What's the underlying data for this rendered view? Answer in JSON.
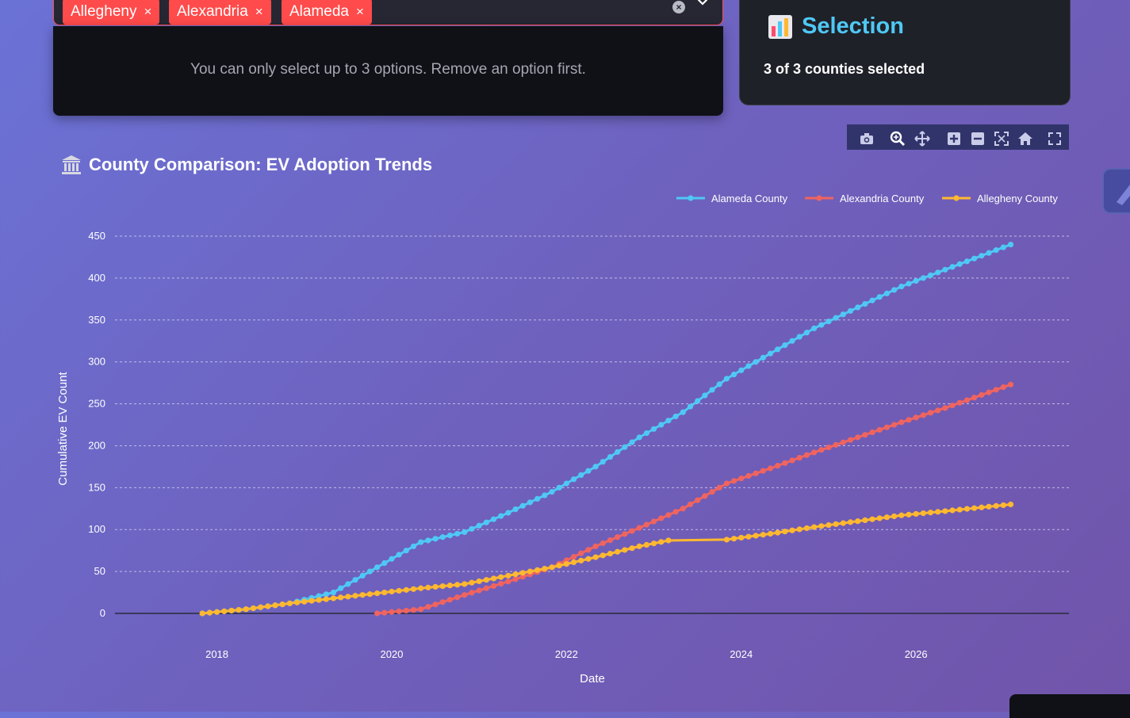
{
  "multiselect": {
    "chips": [
      {
        "label": "Allegheny"
      },
      {
        "label": "Alexandria"
      },
      {
        "label": "Alameda"
      }
    ],
    "remove_glyph": "×",
    "clear_glyph": "×",
    "chevron_glyph": "⌄",
    "limit_message": "You can only select up to 3 options. Remove an option first.",
    "accent_color": "#ff4b4b"
  },
  "selection_card": {
    "icon": "bar-chart-icon",
    "title": "Selection",
    "status": "3 of 3 counties selected"
  },
  "modebar": {
    "buttons": [
      "camera-icon",
      "zoom-icon",
      "pan-icon",
      "zoom-in-icon",
      "zoom-out-icon",
      "autoscale-icon",
      "reset-axes-icon",
      "fullscreen-icon"
    ]
  },
  "chart_title": {
    "icon": "bank-icon",
    "text": "County Comparison: EV Adoption Trends"
  },
  "chart_data": {
    "type": "line",
    "title": "County Comparison: EV Adoption Trends",
    "xlabel": "Date",
    "ylabel": "Cumulative EV Count",
    "x_ticks": [
      "2018",
      "2020",
      "2022",
      "2024",
      "2026"
    ],
    "y_ticks": [
      0,
      50,
      100,
      150,
      200,
      250,
      300,
      350,
      400,
      450
    ],
    "ylim": [
      0,
      450
    ],
    "xlim": [
      "2016-11",
      "2027-10"
    ],
    "grid": true,
    "legend_position": "top-right",
    "series": [
      {
        "name": "Alameda County",
        "color": "#4fc8f5",
        "points": [
          [
            "2017-11",
            0
          ],
          [
            "2018-05",
            5
          ],
          [
            "2018-11",
            12
          ],
          [
            "2019-05",
            25
          ],
          [
            "2019-11",
            55
          ],
          [
            "2020-05",
            85
          ],
          [
            "2020-11",
            97
          ],
          [
            "2021-05",
            120
          ],
          [
            "2021-11",
            145
          ],
          [
            "2022-05",
            175
          ],
          [
            "2022-11",
            210
          ],
          [
            "2023-05",
            240
          ],
          [
            "2023-11",
            280
          ],
          [
            "2024-05",
            310
          ],
          [
            "2024-11",
            340
          ],
          [
            "2025-05",
            365
          ],
          [
            "2025-11",
            390
          ],
          [
            "2026-05",
            410
          ],
          [
            "2027-02",
            440
          ]
        ]
      },
      {
        "name": "Alexandria County",
        "color": "#f0645f",
        "points": [
          [
            "2019-11",
            0
          ],
          [
            "2020-05",
            5
          ],
          [
            "2020-11",
            22
          ],
          [
            "2021-05",
            38
          ],
          [
            "2021-11",
            55
          ],
          [
            "2022-05",
            80
          ],
          [
            "2022-11",
            102
          ],
          [
            "2023-05",
            125
          ],
          [
            "2023-11",
            155
          ],
          [
            "2024-05",
            173
          ],
          [
            "2024-11",
            192
          ],
          [
            "2025-05",
            210
          ],
          [
            "2025-11",
            228
          ],
          [
            "2026-05",
            245
          ],
          [
            "2027-02",
            273
          ]
        ]
      },
      {
        "name": "Allegheny County",
        "color": "#ffb830",
        "points": [
          [
            "2017-11",
            0
          ],
          [
            "2018-05",
            5
          ],
          [
            "2018-11",
            12
          ],
          [
            "2019-05",
            18
          ],
          [
            "2019-11",
            24
          ],
          [
            "2020-05",
            30
          ],
          [
            "2020-11",
            35
          ],
          [
            "2021-05",
            45
          ],
          [
            "2021-11",
            55
          ],
          [
            "2022-05",
            67
          ],
          [
            "2022-11",
            80
          ],
          [
            "2023-03",
            87
          ],
          [
            "2023-11",
            88
          ],
          [
            "2024-05",
            95
          ],
          [
            "2024-11",
            103
          ],
          [
            "2025-05",
            110
          ],
          [
            "2025-11",
            117
          ],
          [
            "2026-05",
            122
          ],
          [
            "2027-02",
            130
          ]
        ]
      }
    ]
  }
}
